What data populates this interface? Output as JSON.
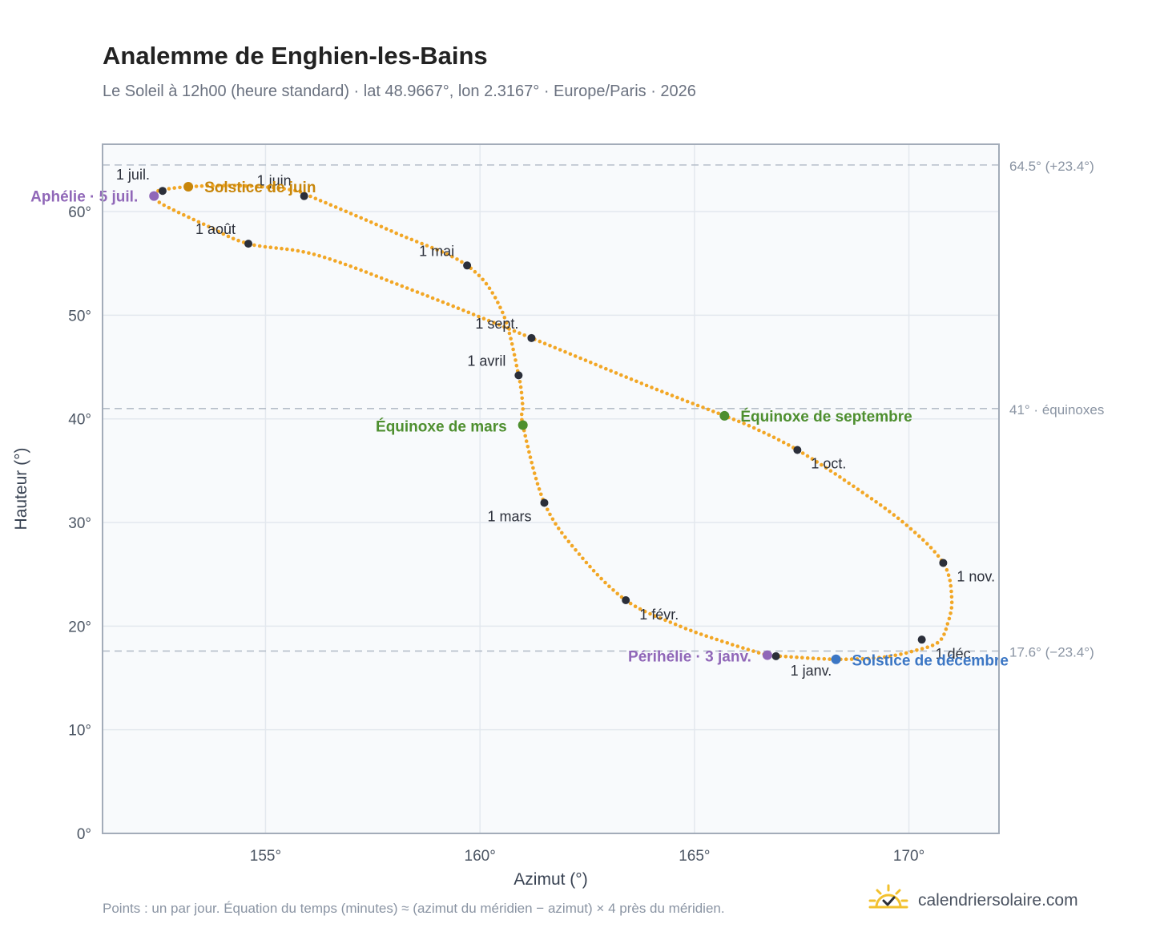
{
  "header": {
    "title": "Analemme de Enghien-les-Bains",
    "subtitle": "Le Soleil à 12h00 (heure standard) · lat 48.9667°, lon 2.3167° · Europe/Paris · 2026"
  },
  "footer": {
    "note": "Points : un par jour. Équation du temps (minutes) ≈ (azimut du méridien − azimut) × 4 près du méridien.",
    "brand": "calendriersolaire.com",
    "brand_icon": "sun-check-icon"
  },
  "colors": {
    "curve": "#f2a726",
    "month_marker": "#2b2f3a",
    "solstice_june": "#c8860a",
    "solstice_december": "#3b76c4",
    "equinox": "#4e8f2f",
    "apsis": "#9067b8",
    "reference_line": "#b5bec9",
    "plot_background": "#f8fafc",
    "grid": "#e3e8ee",
    "frame": "#a3acb9"
  },
  "chart_data": {
    "type": "scatter",
    "xlabel": "Azimut (°)",
    "ylabel": "Hauteur (°)",
    "xlim": [
      151.2,
      172.1
    ],
    "ylim": [
      0,
      66.5
    ],
    "x_ticks": [
      155,
      160,
      165,
      170
    ],
    "x_tick_labels": [
      "155°",
      "160°",
      "165°",
      "170°"
    ],
    "y_ticks": [
      0,
      10,
      20,
      30,
      40,
      50,
      60
    ],
    "y_tick_labels": [
      "0°",
      "10°",
      "20°",
      "30°",
      "40°",
      "50°",
      "60°"
    ],
    "grid": true,
    "reference_lines": [
      {
        "y": 64.5,
        "label": "64.5° (+23.4°)"
      },
      {
        "y": 41.0,
        "label": "41° · équinoxes"
      },
      {
        "y": 17.6,
        "label": "17.6° (−23.4°)"
      }
    ],
    "series": [
      {
        "name": "",
        "style": "dotted curve, one point per day",
        "points": [
          [
            167.0,
            17.1
          ],
          [
            168.3,
            16.8
          ],
          [
            169.4,
            17.0
          ],
          [
            170.2,
            17.7
          ],
          [
            170.7,
            18.5
          ],
          [
            170.9,
            20.2
          ],
          [
            171.0,
            22.6
          ],
          [
            170.8,
            26.1
          ],
          [
            169.9,
            29.9
          ],
          [
            168.6,
            33.8
          ],
          [
            167.4,
            37.0
          ],
          [
            166.4,
            39.1
          ],
          [
            165.7,
            40.3
          ],
          [
            163.9,
            43.2
          ],
          [
            161.2,
            47.8
          ],
          [
            158.5,
            52.3
          ],
          [
            156.2,
            55.8
          ],
          [
            154.6,
            56.9
          ],
          [
            153.6,
            58.7
          ],
          [
            152.6,
            60.7
          ],
          [
            152.4,
            61.5
          ],
          [
            152.5,
            62.0
          ],
          [
            153.2,
            62.4
          ],
          [
            154.4,
            62.5
          ],
          [
            155.6,
            62.1
          ],
          [
            156.2,
            61.2
          ],
          [
            158.0,
            58.0
          ],
          [
            159.7,
            54.8
          ],
          [
            160.5,
            50.5
          ],
          [
            160.9,
            44.2
          ],
          [
            161.0,
            41.0
          ],
          [
            161.0,
            39.4
          ],
          [
            161.5,
            31.9
          ],
          [
            162.3,
            27.0
          ],
          [
            163.4,
            22.5
          ],
          [
            164.6,
            20.1
          ],
          [
            165.6,
            18.6
          ],
          [
            166.7,
            17.2
          ],
          [
            167.0,
            17.1
          ]
        ]
      }
    ],
    "month_markers": [
      {
        "label": "1 janv.",
        "x": 166.9,
        "y": 17.1
      },
      {
        "label": "1 févr.",
        "x": 163.4,
        "y": 22.5
      },
      {
        "label": "1 mars",
        "x": 161.5,
        "y": 31.9
      },
      {
        "label": "1 avril",
        "x": 160.9,
        "y": 44.2
      },
      {
        "label": "1 mai",
        "x": 159.7,
        "y": 54.8
      },
      {
        "label": "1 juin",
        "x": 155.9,
        "y": 61.5
      },
      {
        "label": "1 juil.",
        "x": 152.6,
        "y": 62.0
      },
      {
        "label": "1 août",
        "x": 154.6,
        "y": 56.9
      },
      {
        "label": "1 sept.",
        "x": 161.2,
        "y": 47.8
      },
      {
        "label": "1 oct.",
        "x": 167.4,
        "y": 37.0
      },
      {
        "label": "1 nov.",
        "x": 170.8,
        "y": 26.1
      },
      {
        "label": "1 déc.",
        "x": 170.3,
        "y": 18.7
      }
    ],
    "key_events": [
      {
        "label": "Solstice de juin",
        "x": 153.2,
        "y": 62.4,
        "kind": "solstice_june"
      },
      {
        "label": "Solstice de décembre",
        "x": 168.3,
        "y": 16.8,
        "kind": "solstice_december"
      },
      {
        "label": "Équinoxe de mars",
        "x": 161.0,
        "y": 39.4,
        "kind": "equinox"
      },
      {
        "label": "Équinoxe de septembre",
        "x": 165.7,
        "y": 40.3,
        "kind": "equinox"
      },
      {
        "label": "Aphélie · 5 juil.",
        "x": 152.4,
        "y": 61.5,
        "kind": "apsis"
      },
      {
        "label": "Périhélie · 3 janv.",
        "x": 166.7,
        "y": 17.2,
        "kind": "apsis"
      }
    ]
  }
}
